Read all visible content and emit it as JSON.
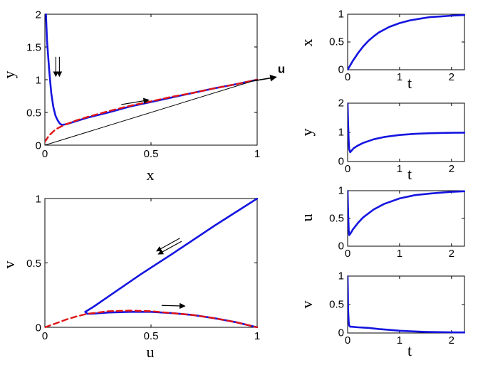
{
  "colors": {
    "trajectory": "#1515e0",
    "slow_manifold": "#e01515",
    "arrow": "#000000",
    "axis": "#000000"
  },
  "chart_data": [
    {
      "id": "xy",
      "type": "line",
      "xlabel": "x",
      "ylabel": "y",
      "xlim": [
        0,
        1
      ],
      "ylim": [
        0,
        2
      ],
      "xticks": [
        0,
        0.5,
        1
      ],
      "yticks": [
        0,
        0.5,
        1,
        1.5,
        2
      ],
      "xticklabels": [
        "0",
        "0.5",
        "1"
      ],
      "yticklabels": [
        "0",
        "0.5",
        "1",
        "1.5",
        "2"
      ],
      "grid": false,
      "series": [
        {
          "style": "solid-blue",
          "x": [
            0.005,
            0.01,
            0.02,
            0.03,
            0.04,
            0.05,
            0.06,
            0.07,
            0.08,
            0.1,
            0.15,
            0.2,
            0.3,
            0.4,
            0.5,
            0.6,
            0.7,
            0.8,
            0.9,
            1.0
          ],
          "y": [
            2.0,
            1.6,
            1.15,
            0.8,
            0.58,
            0.45,
            0.38,
            0.33,
            0.31,
            0.32,
            0.37,
            0.42,
            0.5,
            0.59,
            0.66,
            0.73,
            0.8,
            0.87,
            0.93,
            1.0
          ]
        },
        {
          "style": "dashed-red",
          "x": [
            0,
            0.02,
            0.05,
            0.08,
            0.1,
            0.15,
            0.2,
            0.3,
            0.4,
            0.5,
            0.6,
            0.7,
            0.8,
            0.9,
            1.0
          ],
          "y": [
            0.05,
            0.15,
            0.24,
            0.29,
            0.32,
            0.38,
            0.43,
            0.52,
            0.6,
            0.67,
            0.74,
            0.8,
            0.87,
            0.93,
            1.0
          ]
        },
        {
          "style": "thin-black",
          "x": [
            0,
            1
          ],
          "y": [
            0,
            1
          ]
        }
      ],
      "annotations": [
        {
          "type": "double-arrow",
          "x": 0.06,
          "y": 1.35,
          "dx": 0,
          "dy": -0.3
        },
        {
          "type": "arrow",
          "x": 0.36,
          "y": 0.62,
          "dx": 0.13,
          "dy": 0.07
        },
        {
          "type": "axis-arrow",
          "x": 0.98,
          "y": 0.98,
          "dx": 0.11,
          "dy": 0.06,
          "label": "u"
        }
      ]
    },
    {
      "id": "uv",
      "type": "line",
      "xlabel": "u",
      "ylabel": "v",
      "xlim": [
        0,
        1
      ],
      "ylim": [
        0,
        1
      ],
      "xticks": [
        0,
        0.5,
        1
      ],
      "yticks": [
        0,
        0.5,
        1
      ],
      "xticklabels": [
        "0",
        "0.5",
        "1"
      ],
      "yticklabels": [
        "0",
        "0.5",
        "1"
      ],
      "grid": false,
      "series": [
        {
          "style": "solid-blue",
          "x": [
            1.0,
            0.8,
            0.6,
            0.45,
            0.3,
            0.23,
            0.2,
            0.19,
            0.2,
            0.22,
            0.3,
            0.4,
            0.5,
            0.6,
            0.7,
            0.8,
            0.9,
            1.0
          ],
          "y": [
            1.0,
            0.79,
            0.57,
            0.41,
            0.24,
            0.16,
            0.13,
            0.12,
            0.105,
            0.105,
            0.115,
            0.12,
            0.12,
            0.11,
            0.095,
            0.07,
            0.04,
            0.0
          ]
        },
        {
          "style": "dashed-red",
          "x": [
            0,
            0.05,
            0.1,
            0.15,
            0.2,
            0.3,
            0.4,
            0.5,
            0.6,
            0.7,
            0.8,
            0.9,
            1.0
          ],
          "y": [
            0,
            0.03,
            0.06,
            0.085,
            0.105,
            0.125,
            0.13,
            0.125,
            0.11,
            0.095,
            0.07,
            0.04,
            0.0
          ]
        }
      ],
      "annotations": [
        {
          "type": "double-arrow",
          "x": 0.64,
          "y": 0.68,
          "dx": -0.11,
          "dy": -0.1
        },
        {
          "type": "arrow",
          "x": 0.55,
          "y": 0.17,
          "dx": 0.11,
          "dy": -0.005
        }
      ]
    },
    {
      "id": "xt",
      "type": "line",
      "xlabel": "t",
      "ylabel": "x",
      "xlim": [
        0,
        2.25
      ],
      "ylim": [
        0,
        1
      ],
      "xticks": [
        0,
        1,
        2
      ],
      "yticks": [
        0,
        0.5,
        1
      ],
      "xticklabels": [
        "0",
        "1",
        "2"
      ],
      "yticklabels": [
        "0",
        "0.5",
        "1"
      ],
      "grid": false,
      "series": [
        {
          "style": "solid-blue",
          "x": [
            0,
            0.05,
            0.1,
            0.2,
            0.3,
            0.4,
            0.5,
            0.6,
            0.8,
            1.0,
            1.2,
            1.4,
            1.6,
            1.8,
            2.0,
            2.25
          ],
          "y": [
            0,
            0.08,
            0.16,
            0.3,
            0.42,
            0.52,
            0.6,
            0.67,
            0.77,
            0.84,
            0.89,
            0.92,
            0.95,
            0.96,
            0.975,
            0.985
          ]
        }
      ]
    },
    {
      "id": "yt",
      "type": "line",
      "xlabel": "t",
      "ylabel": "y",
      "xlim": [
        0,
        2.25
      ],
      "ylim": [
        0,
        2
      ],
      "xticks": [
        0,
        1,
        2
      ],
      "yticks": [
        0,
        1,
        2
      ],
      "xticklabels": [
        "0",
        "1",
        "2"
      ],
      "yticklabels": [
        "0",
        "1",
        "2"
      ],
      "grid": false,
      "series": [
        {
          "style": "solid-blue",
          "x": [
            0,
            0.01,
            0.02,
            0.03,
            0.05,
            0.08,
            0.12,
            0.2,
            0.3,
            0.5,
            0.7,
            1.0,
            1.3,
            1.6,
            2.0,
            2.25
          ],
          "y": [
            2.0,
            1.3,
            0.7,
            0.42,
            0.32,
            0.38,
            0.46,
            0.55,
            0.64,
            0.76,
            0.84,
            0.91,
            0.95,
            0.97,
            0.985,
            0.99
          ]
        }
      ]
    },
    {
      "id": "ut",
      "type": "line",
      "xlabel": "",
      "ylabel": "u",
      "xlim": [
        0,
        2.25
      ],
      "ylim": [
        0,
        1
      ],
      "xticks": [
        0,
        1,
        2
      ],
      "yticks": [
        0,
        0.5,
        1
      ],
      "xticklabels": [
        "0",
        "1",
        "2"
      ],
      "yticklabels": [
        "0",
        "0.5",
        "1"
      ],
      "grid": false,
      "series": [
        {
          "style": "solid-blue",
          "x": [
            0,
            0.01,
            0.02,
            0.03,
            0.05,
            0.1,
            0.2,
            0.3,
            0.5,
            0.7,
            1.0,
            1.3,
            1.6,
            2.0,
            2.25
          ],
          "y": [
            1.0,
            0.6,
            0.3,
            0.2,
            0.22,
            0.3,
            0.42,
            0.52,
            0.66,
            0.76,
            0.86,
            0.92,
            0.95,
            0.98,
            0.99
          ]
        }
      ]
    },
    {
      "id": "vt",
      "type": "line",
      "xlabel": "t",
      "ylabel": "v",
      "xlim": [
        0,
        2.25
      ],
      "ylim": [
        0,
        1
      ],
      "xticks": [
        0,
        1,
        2
      ],
      "yticks": [
        0,
        0.5,
        1
      ],
      "xticklabels": [
        "0",
        "1",
        "2"
      ],
      "yticklabels": [
        "0",
        "0.5",
        "1"
      ],
      "grid": false,
      "series": [
        {
          "style": "solid-blue",
          "x": [
            0,
            0.005,
            0.01,
            0.02,
            0.03,
            0.05,
            0.08,
            0.2,
            0.4,
            0.6,
            0.8,
            1.0,
            1.2,
            1.5,
            1.8,
            2.0,
            2.25
          ],
          "y": [
            1.0,
            0.7,
            0.4,
            0.2,
            0.13,
            0.11,
            0.11,
            0.1,
            0.09,
            0.07,
            0.055,
            0.04,
            0.03,
            0.02,
            0.015,
            0.012,
            0.01
          ]
        }
      ]
    }
  ]
}
